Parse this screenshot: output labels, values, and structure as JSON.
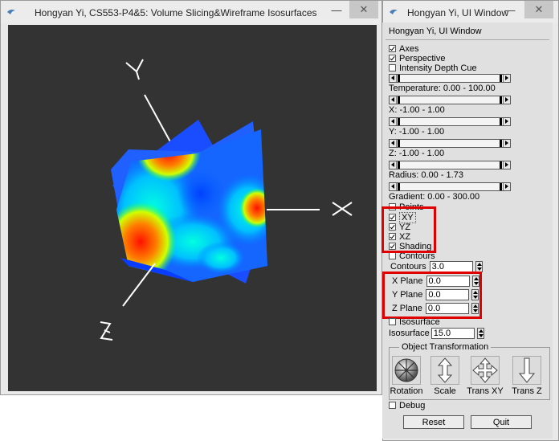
{
  "left_window": {
    "title": "Hongyan Yi, CS553-P4&5: Volume Slicing&Wireframe Isosurfaces",
    "minimize": "—",
    "close": "✕",
    "axes": {
      "x": "X",
      "y": "Y",
      "z": "Z"
    }
  },
  "right_window": {
    "title": "Hongyan Yi, UI Window",
    "minimize": "—",
    "close": "✕",
    "panel_title": "Hongyan Yi, UI Window",
    "checkboxes": {
      "axes": {
        "label": "Axes",
        "checked": true
      },
      "perspective": {
        "label": "Perspective",
        "checked": true
      },
      "depth_cue": {
        "label": "Intensity Depth Cue",
        "checked": false
      },
      "points": {
        "label": "Points",
        "checked": false
      },
      "xy": {
        "label": "XY",
        "checked": true
      },
      "yz": {
        "label": "YZ",
        "checked": true
      },
      "xz": {
        "label": "XZ",
        "checked": true
      },
      "shading": {
        "label": "Shading",
        "checked": true
      },
      "contours": {
        "label": "Contours",
        "checked": false
      },
      "isosurface": {
        "label": "Isosurface",
        "checked": false
      },
      "debug": {
        "label": "Debug",
        "checked": false
      }
    },
    "sliders": {
      "temperature": "Temperature:  0.00 - 100.00",
      "x": "X:  -1.00 - 1.00",
      "y": "Y:  -1.00 - 1.00",
      "z": "Z:  -1.00 - 1.00",
      "radius": "Radius:  0.00 - 1.73",
      "gradient": "Gradient:  0.00 - 300.00"
    },
    "fields": {
      "contours_label": "Contours",
      "contours_value": "3.0",
      "x_plane_label": "X Plane",
      "x_plane_value": "0.0",
      "y_plane_label": "Y Plane",
      "y_plane_value": "0.0",
      "z_plane_label": "Z Plane",
      "z_plane_value": "0.0",
      "isosurface_label": "Isosurface",
      "isosurface_value": "15.0"
    },
    "transform_group": {
      "title": "Object Transformation",
      "tools": [
        "Rotation",
        "Scale",
        "Trans XY",
        "Trans Z"
      ]
    },
    "buttons": {
      "reset": "Reset",
      "quit": "Quit"
    }
  },
  "colors": {
    "highlight": "#e00000",
    "viewport": "#333333"
  }
}
